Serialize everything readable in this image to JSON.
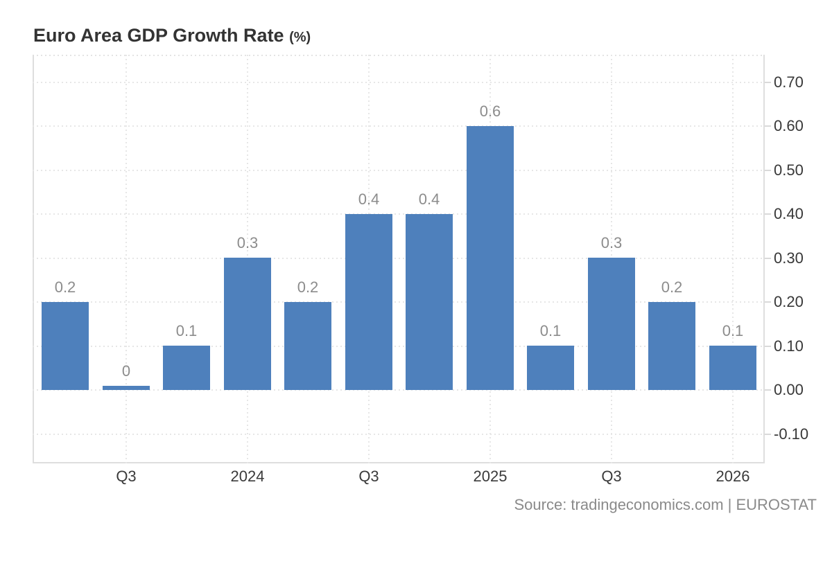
{
  "title": {
    "main": "Euro Area GDP Growth Rate",
    "suffix": "(%)"
  },
  "source": "Source: tradingeconomics.com | EUROSTAT",
  "chart_data": {
    "type": "bar",
    "title": "Euro Area GDP Growth Rate",
    "unit": "(%)",
    "values": [
      0.2,
      0,
      0.1,
      0.3,
      0.2,
      0.4,
      0.4,
      0.6,
      0.1,
      0.3,
      0.2,
      0.1
    ],
    "bar_labels": [
      "0.2",
      "0",
      "0.1",
      "0.3",
      "0.2",
      "0.4",
      "0.4",
      "0.6",
      "0.1",
      "0.3",
      "0.2",
      "0.1"
    ],
    "x_tick_labels": [
      "Q3",
      "2024",
      "Q3",
      "2025",
      "Q3",
      "2026"
    ],
    "x_tick_bar_indices": [
      1,
      3,
      5,
      7,
      9,
      11
    ],
    "y_tick_labels": [
      "0.70",
      "0.60",
      "0.50",
      "0.40",
      "0.30",
      "0.20",
      "0.10",
      "0.00",
      "-0.10"
    ],
    "y_tick_values": [
      0.7,
      0.6,
      0.5,
      0.4,
      0.3,
      0.2,
      0.1,
      0.0,
      -0.1
    ],
    "ylim": [
      -0.167,
      0.762
    ],
    "grid": "dotted",
    "legend": "none",
    "y_axis_position": "right",
    "bar_color": "#4e80bc",
    "label_color": "#8c8c8c",
    "axis_text_color": "#383838"
  }
}
